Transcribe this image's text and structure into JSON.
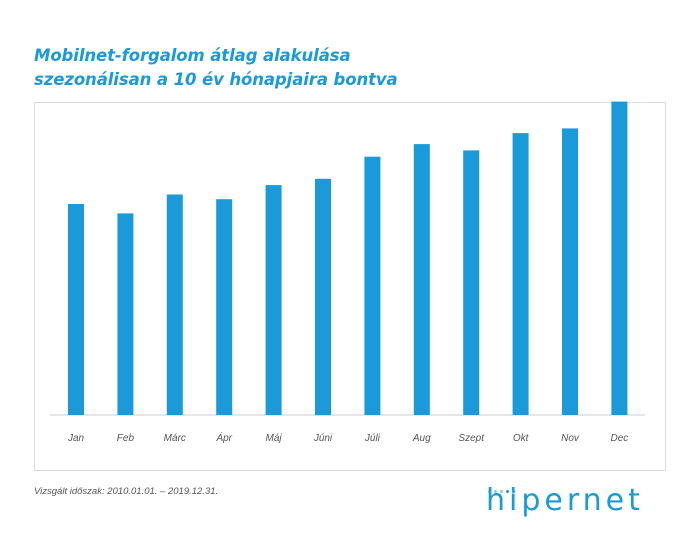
{
  "title": {
    "line1": "Mobilnet-forgalom átlag alakulása",
    "line2": "szezonálisan a 10 év hónapjaira bontva"
  },
  "footnote": "Vizsgált időszak: 2010.01.01. – 2019.12.31.",
  "brand": {
    "name": "hipernet"
  },
  "colors": {
    "accent": "#1a9ad9",
    "axis": "#cccccc",
    "label": "#555555"
  },
  "chart_data": {
    "type": "bar",
    "categories": [
      "Jan",
      "Feb",
      "Márc",
      "Ápr",
      "Máj",
      "Júni",
      "Júli",
      "Aug",
      "Szept",
      "Okt",
      "Nov",
      "Dec"
    ],
    "values": [
      67,
      64,
      70,
      68.5,
      73,
      75,
      82,
      86,
      84,
      89.5,
      91,
      99.5
    ],
    "ylim": [
      0,
      100
    ],
    "title": "",
    "xlabel": "",
    "ylabel": "",
    "grid": false,
    "legend": "none"
  }
}
